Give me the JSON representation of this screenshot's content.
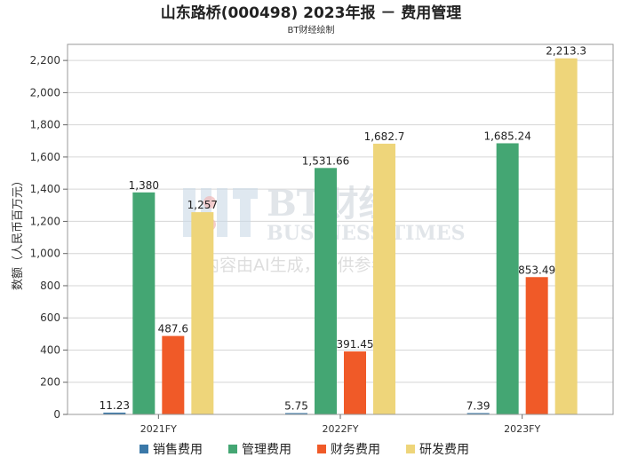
{
  "chart_data": {
    "type": "bar",
    "title": "山东路桥(000498) 2023年报 － 费用管理",
    "subtitle": "BT财经绘制",
    "ylabel": "数额（人民币百万元）",
    "xlabel": "",
    "categories": [
      "2021FY",
      "2022FY",
      "2023FY"
    ],
    "ylim": [
      0,
      2300
    ],
    "yticks": [
      0,
      200,
      400,
      600,
      800,
      1000,
      1200,
      1400,
      1600,
      1800,
      2000,
      2200
    ],
    "ytick_labels": [
      "0",
      "200",
      "400",
      "600",
      "800",
      "1,000",
      "1,200",
      "1,400",
      "1,600",
      "1,800",
      "2,000",
      "2,200"
    ],
    "grid": true,
    "legend_position": "bottom",
    "series": [
      {
        "name": "销售费用",
        "color": "#3a78a8",
        "values": [
          11.23,
          5.75,
          7.39
        ],
        "labels": [
          "11.23",
          "5.75",
          "7.39"
        ]
      },
      {
        "name": "管理费用",
        "color": "#44a673",
        "values": [
          1380,
          1531.66,
          1685.24
        ],
        "labels": [
          "1,380",
          "1,531.66",
          "1,685.24"
        ]
      },
      {
        "name": "财务费用",
        "color": "#f05a28",
        "values": [
          487.6,
          391.45,
          853.49
        ],
        "labels": [
          "487.6",
          "391.45",
          "853.49"
        ]
      },
      {
        "name": "研发费用",
        "color": "#eed57a",
        "values": [
          1257,
          1682.7,
          2213.3
        ],
        "labels": [
          "1,257",
          "1,682.7",
          "2,213.3"
        ]
      }
    ]
  },
  "watermark": {
    "logo_text": "BT财经",
    "brand_text": "BUSINESS TIMES",
    "notice": "内容由AI生成，仅供参考"
  }
}
